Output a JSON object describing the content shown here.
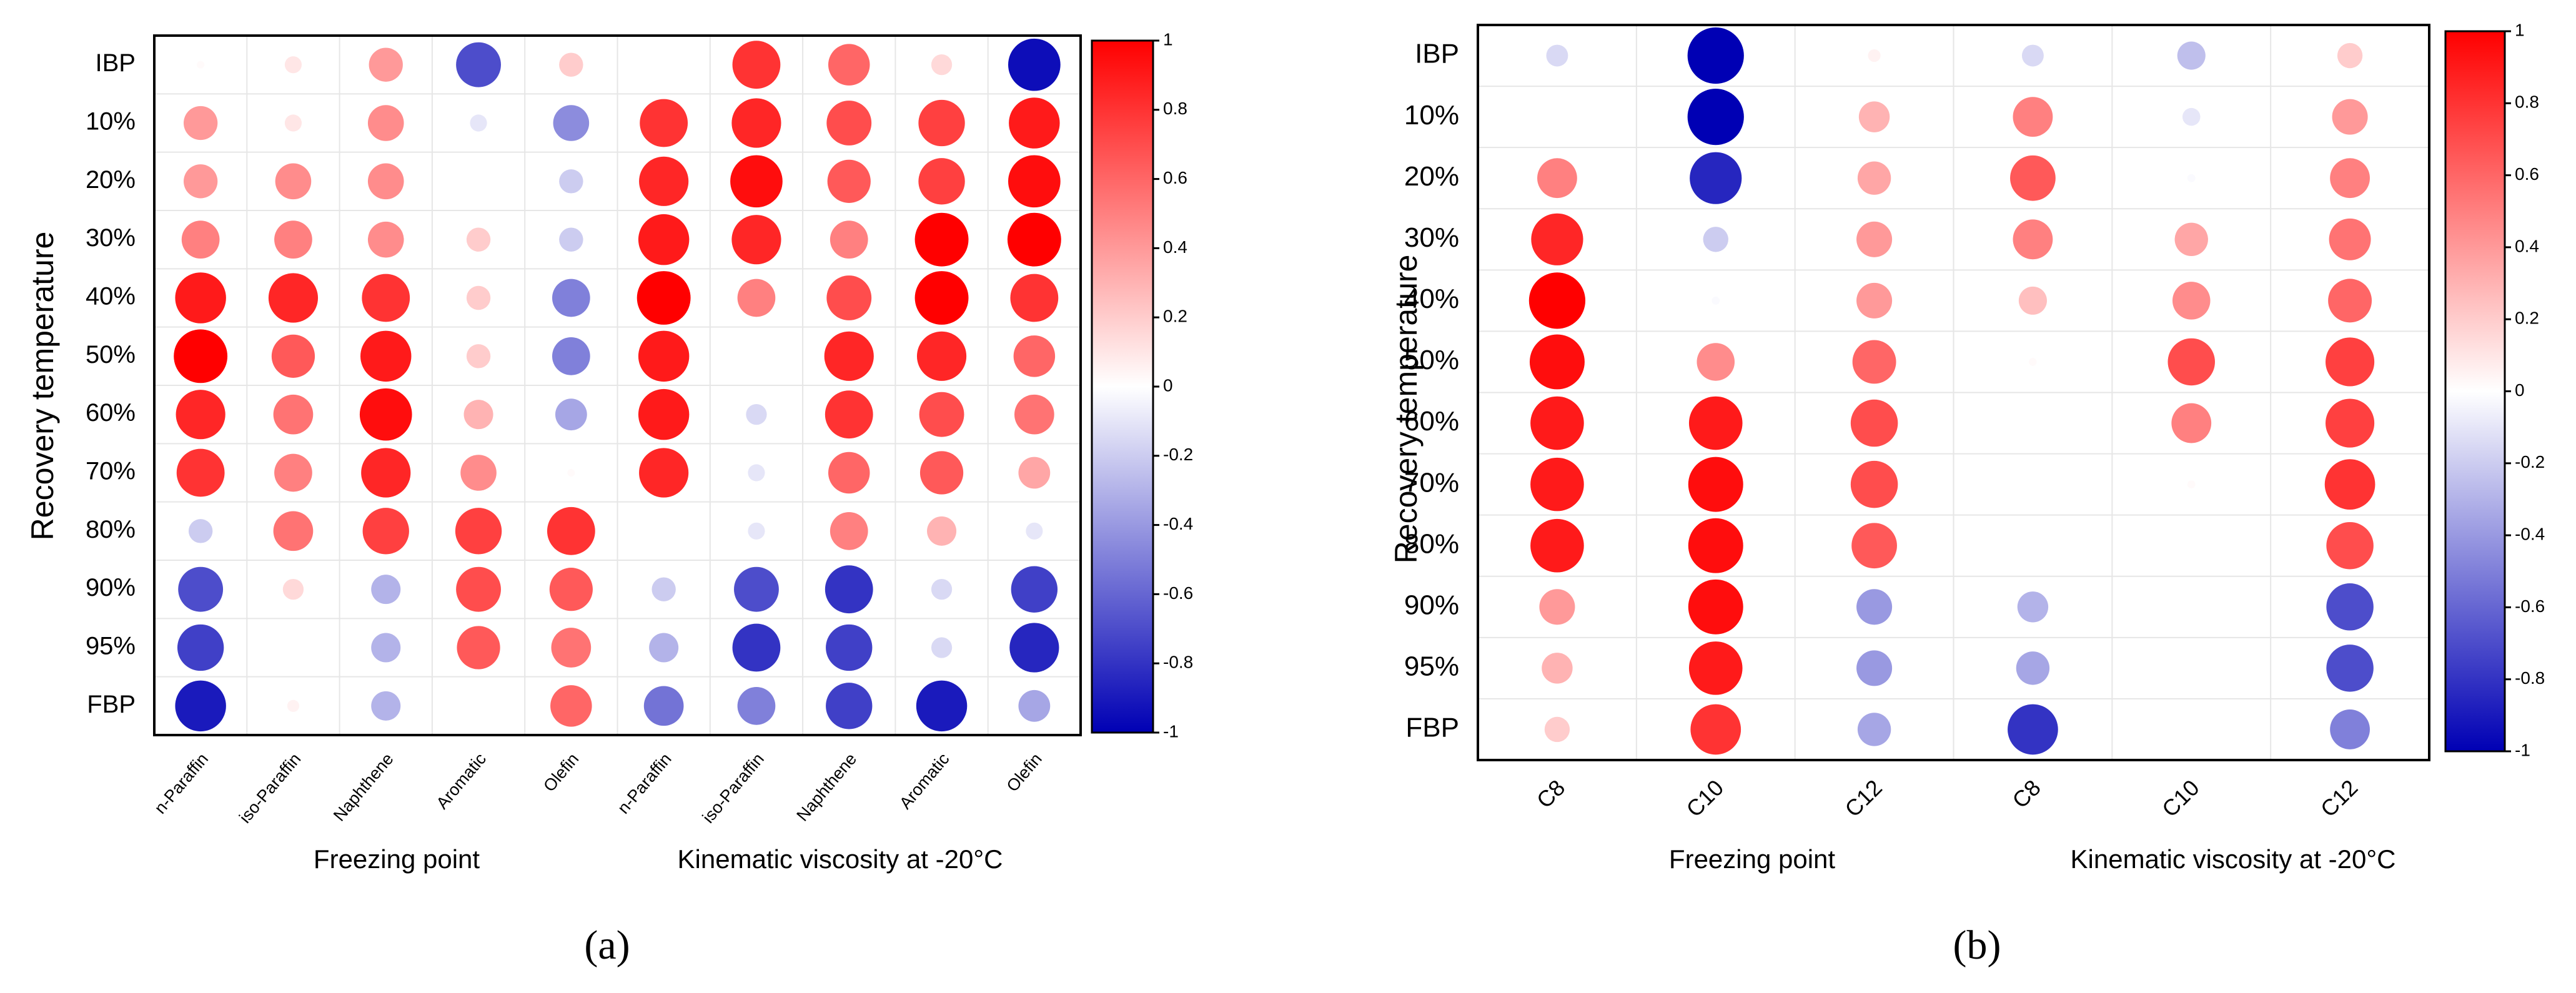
{
  "figure": {
    "panels": [
      {
        "label": "(a)",
        "ylabel": "Recovery temperature",
        "group_labels": [
          "Freezing point",
          "Kinematic viscosity at -20°C"
        ]
      },
      {
        "label": "(b)",
        "ylabel": "Recovery temperature",
        "group_labels": [
          "Freezing point",
          "Kinematic viscosity at -20°C"
        ]
      }
    ],
    "colors": {
      "positive": "#ff0000",
      "zero": "#ffffff",
      "negative": "#0000b4",
      "grid": "#e6e6e6",
      "frame": "#000000"
    }
  },
  "chart_data": [
    {
      "type": "heatmap",
      "title": "(a)",
      "xlabel": "Freezing point | Kinematic viscosity at -20°C",
      "ylabel": "Recovery temperature",
      "x_categories": [
        "n-Paraffin",
        "iso-Paraffin",
        "Naphthene",
        "Aromatic",
        "Olefin",
        "n-Paraffin",
        "iso-Paraffin",
        "Naphthene",
        "Aromatic",
        "Olefin"
      ],
      "y_categories": [
        "IBP",
        "10%",
        "20%",
        "30%",
        "40%",
        "50%",
        "60%",
        "70%",
        "80%",
        "90%",
        "95%",
        "FBP"
      ],
      "values": [
        [
          0.02,
          0.1,
          0.4,
          -0.7,
          0.2,
          0.0,
          0.8,
          0.6,
          0.15,
          -0.95
        ],
        [
          0.4,
          0.1,
          0.45,
          -0.1,
          -0.45,
          0.8,
          0.85,
          0.7,
          0.75,
          0.9
        ],
        [
          0.4,
          0.45,
          0.45,
          0.0,
          -0.2,
          0.85,
          0.95,
          0.65,
          0.75,
          0.95
        ],
        [
          0.5,
          0.5,
          0.45,
          0.2,
          -0.2,
          0.9,
          0.85,
          0.5,
          1.0,
          1.0
        ],
        [
          0.9,
          0.85,
          0.8,
          0.2,
          -0.5,
          1.0,
          0.5,
          0.7,
          1.0,
          0.8
        ],
        [
          1.0,
          0.65,
          0.9,
          0.2,
          -0.5,
          0.9,
          0.0,
          0.85,
          0.85,
          0.6
        ],
        [
          0.85,
          0.55,
          0.95,
          0.3,
          -0.35,
          0.9,
          -0.15,
          0.8,
          0.7,
          0.55
        ],
        [
          0.8,
          0.5,
          0.85,
          0.45,
          0.02,
          0.85,
          -0.1,
          0.6,
          0.65,
          0.35
        ],
        [
          -0.2,
          0.55,
          0.75,
          0.75,
          0.8,
          0.0,
          -0.1,
          0.5,
          0.3,
          -0.1
        ],
        [
          -0.7,
          0.15,
          -0.3,
          0.7,
          0.65,
          -0.2,
          -0.7,
          -0.8,
          -0.15,
          -0.75
        ],
        [
          -0.75,
          0.0,
          -0.3,
          0.65,
          0.55,
          -0.3,
          -0.8,
          -0.75,
          -0.15,
          -0.85
        ],
        [
          -0.9,
          0.05,
          -0.3,
          0.0,
          0.6,
          -0.55,
          -0.5,
          -0.75,
          -0.9,
          -0.35
        ]
      ],
      "zlim": [
        -1,
        1
      ],
      "colorbar_ticks": [
        "1",
        "0.8",
        "0.6",
        "0.4",
        "0.2",
        "0",
        "-0.2",
        "-0.4",
        "-0.6",
        "-0.8",
        "-1"
      ],
      "legend": "right"
    },
    {
      "type": "heatmap",
      "title": "(b)",
      "xlabel": "Freezing point | Kinematic viscosity at -20°C",
      "ylabel": "Recovery temperature",
      "x_categories": [
        "C8",
        "C10",
        "C12",
        "C8",
        "C10",
        "C12"
      ],
      "y_categories": [
        "IBP",
        "10%",
        "20%",
        "30%",
        "40%",
        "50%",
        "60%",
        "70%",
        "80%",
        "90%",
        "95%",
        "FBP"
      ],
      "values": [
        [
          -0.15,
          -1.0,
          0.05,
          -0.15,
          -0.25,
          0.2
        ],
        [
          0.0,
          -1.0,
          0.3,
          0.5,
          -0.1,
          0.4
        ],
        [
          0.5,
          -0.85,
          0.35,
          0.65,
          -0.02,
          0.5
        ],
        [
          0.85,
          -0.2,
          0.4,
          0.5,
          0.35,
          0.55
        ],
        [
          1.0,
          -0.02,
          0.4,
          0.25,
          0.45,
          0.6
        ],
        [
          0.95,
          0.45,
          0.6,
          0.02,
          0.7,
          0.75
        ],
        [
          0.9,
          0.9,
          0.7,
          0.0,
          0.5,
          0.75
        ],
        [
          0.9,
          0.95,
          0.7,
          0.0,
          0.02,
          0.8
        ],
        [
          0.9,
          0.95,
          0.65,
          0.0,
          0.0,
          0.7
        ],
        [
          0.4,
          0.95,
          -0.4,
          -0.3,
          0.0,
          -0.7
        ],
        [
          0.3,
          0.9,
          -0.4,
          -0.35,
          0.0,
          -0.7
        ],
        [
          0.2,
          0.8,
          -0.35,
          -0.8,
          0.0,
          -0.5
        ]
      ],
      "zlim": [
        -1,
        1
      ],
      "colorbar_ticks": [
        "1",
        "0.8",
        "0.6",
        "0.4",
        "0.2",
        "0",
        "-0.2",
        "-0.4",
        "-0.6",
        "-0.8",
        "-1"
      ],
      "legend": "right"
    }
  ]
}
